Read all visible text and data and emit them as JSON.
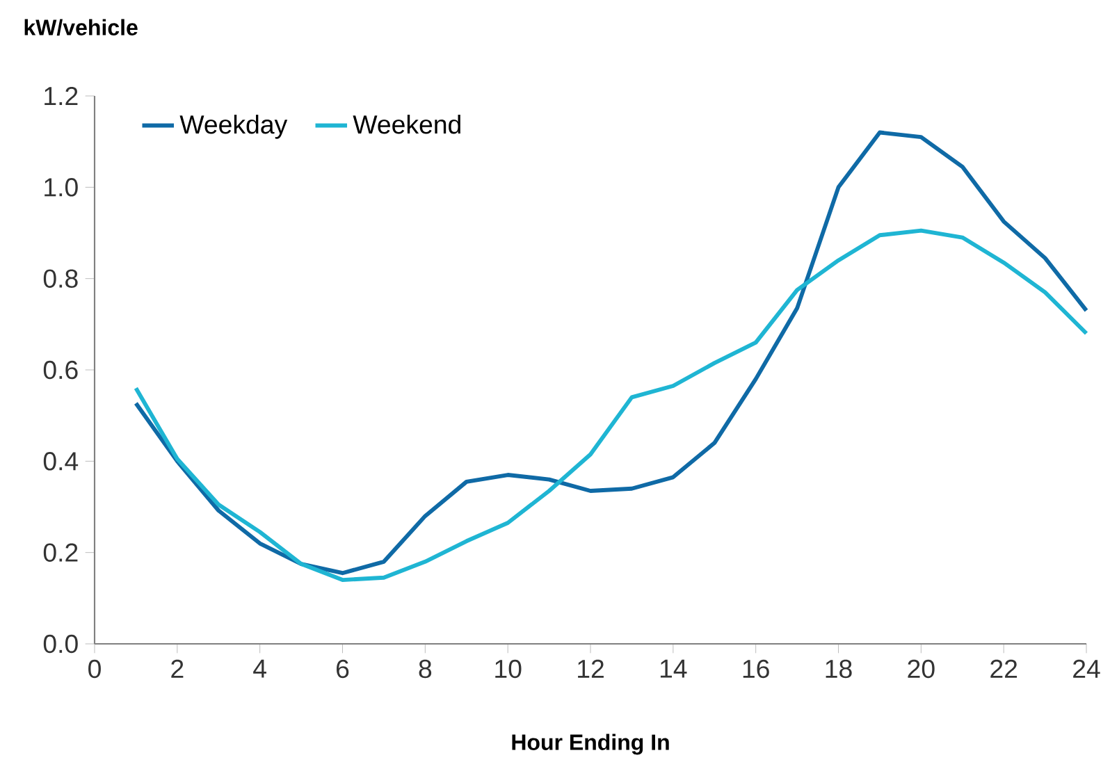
{
  "chart_data": {
    "type": "line",
    "ylabel": "kW/vehicle",
    "xlabel": "Hour Ending In",
    "x": [
      1,
      2,
      3,
      4,
      5,
      6,
      7,
      8,
      9,
      10,
      11,
      12,
      13,
      14,
      15,
      16,
      17,
      18,
      19,
      20,
      21,
      22,
      23,
      24
    ],
    "series": [
      {
        "name": "Weekday",
        "color": "#0f6aa6",
        "values": [
          0.527,
          0.4,
          0.292,
          0.22,
          0.175,
          0.155,
          0.18,
          0.28,
          0.355,
          0.37,
          0.36,
          0.335,
          0.34,
          0.365,
          0.44,
          0.58,
          0.735,
          1.0,
          1.12,
          1.11,
          1.045,
          0.925,
          0.845,
          0.73
        ]
      },
      {
        "name": "Weekend",
        "color": "#1fb5d3",
        "values": [
          0.56,
          0.405,
          0.305,
          0.245,
          0.175,
          0.14,
          0.145,
          0.18,
          0.225,
          0.265,
          0.335,
          0.415,
          0.54,
          0.565,
          0.615,
          0.66,
          0.775,
          0.84,
          0.895,
          0.905,
          0.89,
          0.835,
          0.77,
          0.68
        ]
      }
    ],
    "xlim": [
      0,
      24
    ],
    "xticks": [
      0,
      2,
      4,
      6,
      8,
      10,
      12,
      14,
      16,
      18,
      20,
      22,
      24
    ],
    "ylim": [
      0,
      1.2
    ],
    "yticks": [
      {
        "value": 0,
        "label": "0.0"
      },
      {
        "value": 0.2,
        "label": "0.2"
      },
      {
        "value": 0.4,
        "label": "0.4"
      },
      {
        "value": 0.6,
        "label": "0.6"
      },
      {
        "value": 0.8,
        "label": "0.8"
      },
      {
        "value": 1.0,
        "label": "1.0"
      },
      {
        "value": 1.2,
        "label": "1.2"
      }
    ],
    "grid": false,
    "legend": "top left",
    "marker": "none",
    "line_style": "solid"
  }
}
